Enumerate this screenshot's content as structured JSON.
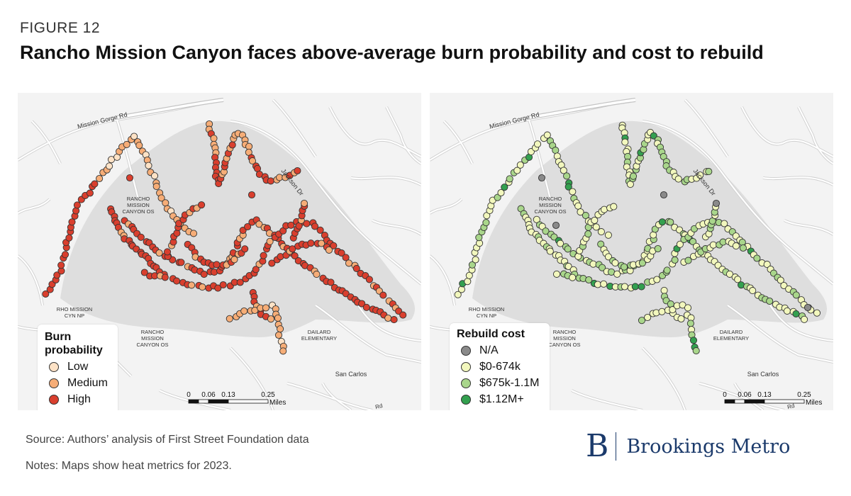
{
  "figure_label": "FIGURE 12",
  "title": "Rancho Mission Canyon faces above-average burn probability and cost to rebuild",
  "maps": [
    {
      "legend": {
        "title_line1": "Burn",
        "title_line2": "probability",
        "items": [
          {
            "label": "Low",
            "color": "#fde2c6"
          },
          {
            "label": "Medium",
            "color": "#f6ad77"
          },
          {
            "label": "High",
            "color": "#d93f2e"
          }
        ]
      },
      "palette": [
        "#d93f2e",
        "#f6ad77",
        "#fde2c6"
      ]
    },
    {
      "legend": {
        "title_line1": "Rebuild cost",
        "items": [
          {
            "label": "N/A",
            "color": "#8a8a8a"
          },
          {
            "label": "$0-674k",
            "color": "#f2f7bd"
          },
          {
            "label": "$675k-1.1M",
            "color": "#a9d68b"
          },
          {
            "label": "$1.12M+",
            "color": "#33a04f"
          }
        ]
      },
      "palette": [
        "#f2f7bd",
        "#a9d68b",
        "#33a04f"
      ]
    }
  ],
  "map_labels": {
    "road1": "Mission Gorge Rd",
    "road2": "Jackson Dr",
    "area1_l1": "RANCHO",
    "area1_l2": "MISSION",
    "area1_l3": "CANYON OS",
    "area2_l1": "RHO MISSION",
    "area2_l2": "CYN NP",
    "area3_l1": "RANCHO",
    "area3_l2": "MISSION",
    "area3_l3": "CANYON OS",
    "school_l1": "DAILARD",
    "school_l2": "ELEMENTARY",
    "place": "San Carlos",
    "partial": "Rd"
  },
  "scale_bar": {
    "ticks": [
      "0",
      "0.06",
      "0.13",
      "0.25"
    ],
    "unit": "Miles"
  },
  "source": "Source: Authors’ analysis of First Street Foundation data",
  "notes": "Notes: Maps show heat metrics for 2023.",
  "logo": {
    "letter": "B",
    "text": "Brookings Metro"
  }
}
